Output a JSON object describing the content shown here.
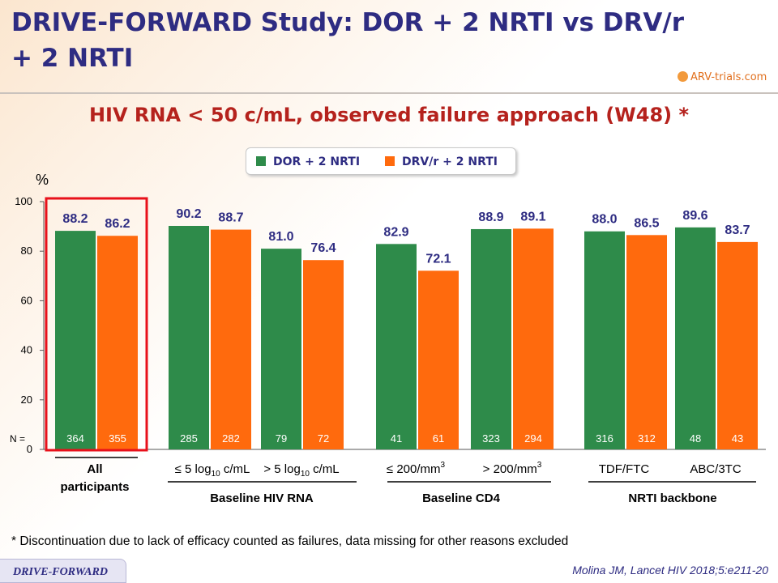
{
  "header": {
    "title": "DRIVE-FORWARD Study: DOR + 2 NRTI vs DRV/r + 2 NRTI",
    "logo": "ARV-trials.com"
  },
  "chart_data": {
    "type": "bar",
    "title": "HIV RNA < 50 c/mL, observed failure approach (W48) *",
    "ylabel": "%",
    "ylim": [
      0,
      100
    ],
    "yticks": [
      0,
      20,
      40,
      60,
      80,
      100
    ],
    "n_label": "N =",
    "series": [
      {
        "name": "DOR + 2 NRTI",
        "color": "#2e8b4a"
      },
      {
        "name": "DRV/r + 2 NRTI",
        "color": "#ff6a0d"
      }
    ],
    "groups": [
      {
        "values": [
          88.2,
          86.2
        ],
        "value_labels": [
          "88.2",
          "86.2"
        ],
        "n": [
          "364",
          "355"
        ],
        "highlight": true
      },
      {
        "values": [
          90.2,
          88.7
        ],
        "value_labels": [
          "90.2",
          "88.7"
        ],
        "n": [
          "285",
          "282"
        ]
      },
      {
        "values": [
          81.0,
          76.4
        ],
        "value_labels": [
          "81.0",
          "76.4"
        ],
        "n": [
          "79",
          "72"
        ]
      },
      {
        "values": [
          82.9,
          72.1
        ],
        "value_labels": [
          "82.9",
          "72.1"
        ],
        "n": [
          "41",
          "61"
        ]
      },
      {
        "values": [
          88.9,
          89.1
        ],
        "value_labels": [
          "88.9",
          "89.1"
        ],
        "n": [
          "323",
          "294"
        ]
      },
      {
        "values": [
          88.0,
          86.5
        ],
        "value_labels": [
          "88.0",
          "86.5"
        ],
        "n": [
          "316",
          "312"
        ]
      },
      {
        "values": [
          89.6,
          83.7
        ],
        "value_labels": [
          "89.6",
          "83.7"
        ],
        "n": [
          "48",
          "43"
        ]
      }
    ],
    "categories": [
      {
        "lines": [
          "All",
          "participants"
        ]
      },
      {
        "text": "≤ 5 log",
        "sub": "10",
        "tail": " c/mL"
      },
      {
        "text": "> 5 log",
        "sub": "10",
        "tail": " c/mL"
      },
      {
        "text": "≤ 200/mm",
        "sup": "3"
      },
      {
        "text": "> 200/mm",
        "sup": "3"
      },
      {
        "text": "TDF/FTC"
      },
      {
        "text": "ABC/3TC"
      }
    ],
    "category_groups": [
      "Baseline HIV RNA",
      "Baseline CD4",
      "NRTI backbone"
    ]
  },
  "footnote": "* Discontinuation due to lack of efficacy counted as failures, data missing for other reasons excluded",
  "footer": {
    "study_tag": "DRIVE-FORWARD",
    "citation": "Molina JM, Lancet HIV 2018;5:e211-20"
  }
}
